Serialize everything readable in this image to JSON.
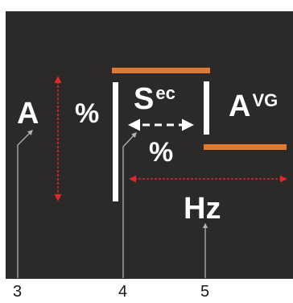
{
  "display": {
    "amp_label": "A",
    "percent_left": "%",
    "sec_main": "S",
    "sec_sup": "ec",
    "percent_center": "%",
    "avg_main": "A",
    "avg_sup": "VG",
    "hz_label": "Hz"
  },
  "callouts": {
    "c3": "3",
    "c4": "4",
    "c5": "5"
  },
  "colors": {
    "background": "#2b2a29",
    "accent_orange": "#e07a33",
    "arrow_red": "#e3262b",
    "text_white": "#ffffff",
    "leader_gray": "#b3b3b3"
  }
}
